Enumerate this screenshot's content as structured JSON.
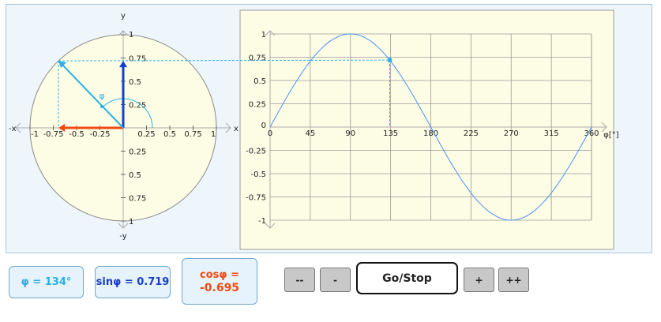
{
  "colors": {
    "cos": "#f04a10",
    "sin": "#1540c8",
    "phi": "#2ab0e6",
    "plot_bg": "#fdfde6",
    "grid": "#999999",
    "curve": "#4a8ff0"
  },
  "angle_deg": 134,
  "circle": {
    "x_label": "x",
    "neg_x_label": "-x",
    "y_label": "y",
    "neg_y_label": "-y",
    "phi_label": "φ",
    "x_ticks": [
      "-1",
      "-0.75",
      "-0.5",
      "-0.25",
      "0.25",
      "0.5",
      "0.75",
      "1"
    ],
    "y_ticks": [
      "1",
      "0.75",
      "0.5",
      "0.25",
      "0.25",
      "0.5",
      "0.75",
      "1"
    ]
  },
  "chart_data": {
    "type": "line",
    "series": [
      {
        "function": "sin",
        "x_start": 0,
        "x_end": 360
      }
    ],
    "xlabel": "φ[°]",
    "xlim": [
      0,
      360
    ],
    "ylim": [
      -1,
      1
    ],
    "x_ticks": [
      "0",
      "45",
      "90",
      "135",
      "180",
      "225",
      "270",
      "315",
      "360"
    ],
    "y_ticks": [
      "1",
      "0.75",
      "0.5",
      "0.25",
      "0",
      "-0.25",
      "-0.5",
      "-0.75",
      "-1"
    ],
    "marker": {
      "x": 134,
      "y": 0.719
    },
    "grid": true
  },
  "readouts": {
    "phi": "φ = 134°",
    "sin": "sinφ = 0.719",
    "cos_label": "cosφ =",
    "cos_value": "-0.695"
  },
  "controls": {
    "fast_back": "--",
    "back": "-",
    "go_stop": "Go/Stop",
    "forward": "+",
    "fast_forward": "++"
  }
}
